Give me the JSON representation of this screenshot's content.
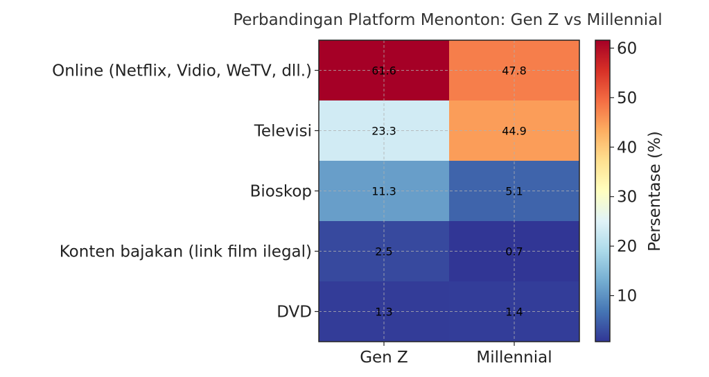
{
  "chart_data": {
    "type": "heatmap",
    "title": "Perbandingan Platform Menonton: Gen Z vs Millennial",
    "columns": [
      "Gen Z",
      "Millennial"
    ],
    "rows": [
      "Online (Netflix, Vidio, WeTV, dll.)",
      "Televisi",
      "Bioskop",
      "Konten bajakan (link film ilegal)",
      "DVD"
    ],
    "values": [
      [
        61.6,
        47.8
      ],
      [
        23.3,
        44.9
      ],
      [
        11.3,
        5.1
      ],
      [
        2.5,
        0.7
      ],
      [
        1.3,
        1.4
      ]
    ],
    "value_labels": [
      [
        "61.6",
        "47.8"
      ],
      [
        "23.3",
        "44.9"
      ],
      [
        "11.3",
        "5.1"
      ],
      [
        "2.5",
        "0.7"
      ],
      [
        "1.3",
        "1.4"
      ]
    ],
    "colorbar": {
      "label": "Persentase (%)",
      "ticks": [
        10,
        20,
        30,
        40,
        50,
        60
      ],
      "tick_labels": [
        "10",
        "20",
        "30",
        "40",
        "50",
        "60"
      ],
      "range": [
        0.7,
        61.6
      ]
    },
    "colormap": "RdYlBu_r",
    "grid": true
  }
}
